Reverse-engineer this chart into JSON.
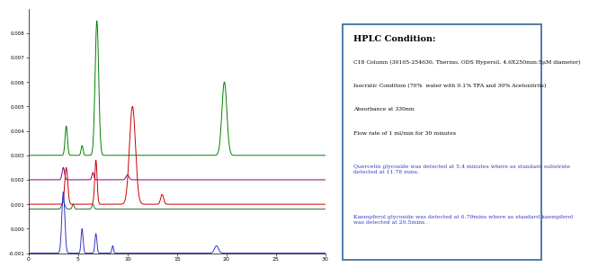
{
  "xlim": [
    0,
    30
  ],
  "ylim": [
    -0.001,
    0.009
  ],
  "yticks": [
    -0.001,
    0.0,
    0.001,
    0.002,
    0.003,
    0.004,
    0.005,
    0.006,
    0.007,
    0.008
  ],
  "ytick_labels": [
    "-0.001",
    "0.000",
    "0.001",
    "0.002",
    "0.003",
    "0.004",
    "0.005",
    "0.006",
    "0.007",
    "0.008"
  ],
  "xticks": [
    0,
    5,
    10,
    15,
    20,
    25,
    30
  ],
  "bg_color": "#ffffff",
  "line_colors": {
    "green": "#008000",
    "blue": "#3333cc",
    "red": "#cc0000",
    "purple": "#800080",
    "dark_green": "#336633"
  },
  "hplc_box": {
    "title": "HPLC Condition:",
    "lines": [
      "C18 Column (30105-254630, Thermo, ODS Hypersil, 4.6X250mm:5μM diameter)",
      "Isocratic Condition (70%  water with 0.1% TFA and 30% Acetonitrile)",
      "Absorbance at 330nm",
      "Flow rate of 1 ml/min for 30 minutes"
    ],
    "colored_lines": [
      "Quercetin glycoside was detected at 5.4 minutes where as standard substrate\ndetected at 11.78 mins.",
      "Kaempferol glycoside was detected at 6.79mins where as standard kaempferol\nwas detected at 20.5mins."
    ],
    "colored_line_color": "#3333cc",
    "border_color": "#336699",
    "bg_color": "#ffffff"
  },
  "green_baseline": 0.003,
  "purple_baseline": 0.002,
  "red_baseline": 0.001,
  "dg_baseline": 0.0008,
  "blue_baseline": -0.001
}
